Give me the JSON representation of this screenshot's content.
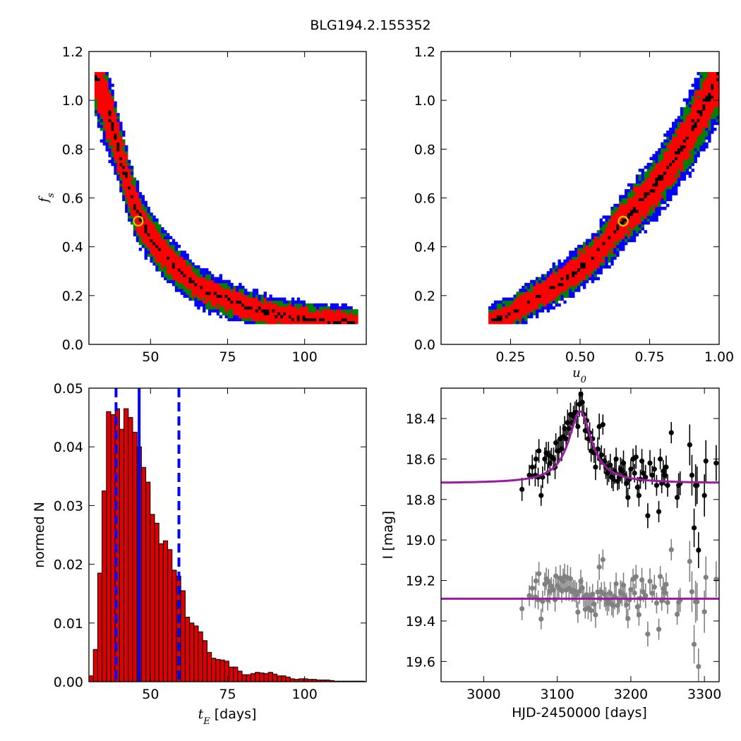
{
  "figure": {
    "title": "BLG194.2.155352"
  },
  "colors": {
    "c3": "#0000ff",
    "c2": "#008000",
    "c1": "#ff0000",
    "c0": "#000000",
    "hist_fill": "#dd0000",
    "model": "#9a1aa0",
    "vline": "#0000ff",
    "data_top": "#000000",
    "data_bottom": "#808080",
    "marker_edge": "#d4c400"
  },
  "chart_data": [
    {
      "type": "heatmap",
      "panel": "fs-vs-tE",
      "xlabel": "",
      "ylabel": "f_s",
      "xlim": [
        30,
        120
      ],
      "ylim": [
        0,
        1.2
      ],
      "xticks": [
        "50",
        "75",
        "100"
      ],
      "yticks": [
        "0.0",
        "0.2",
        "0.4",
        "0.6",
        "0.8",
        "1.0",
        "1.2"
      ],
      "ridge_x": [
        32,
        35,
        38,
        40,
        43,
        46,
        50,
        55,
        60,
        65,
        70,
        78,
        85,
        95,
        105,
        117
      ],
      "ridge_y": [
        1.12,
        1.0,
        0.88,
        0.78,
        0.64,
        0.53,
        0.44,
        0.36,
        0.3,
        0.24,
        0.21,
        0.17,
        0.14,
        0.115,
        0.1,
        0.09
      ],
      "best_fit": {
        "x": 46,
        "y": 0.505
      }
    },
    {
      "type": "heatmap",
      "panel": "fs-vs-u0",
      "xlabel": "u_0",
      "ylabel": "",
      "xlim": [
        0,
        1.0
      ],
      "ylim": [
        0,
        1.2
      ],
      "xticks": [
        "0.25",
        "0.50",
        "0.75",
        "1.00"
      ],
      "yticks": [
        "0.0",
        "0.2",
        "0.4",
        "0.6",
        "0.8",
        "1.0",
        "1.2"
      ],
      "ridge_x": [
        0.17,
        0.25,
        0.35,
        0.45,
        0.55,
        0.65,
        0.75,
        0.85,
        0.92,
        1.0
      ],
      "ridge_y": [
        0.09,
        0.13,
        0.2,
        0.27,
        0.36,
        0.5,
        0.62,
        0.78,
        0.92,
        1.1
      ],
      "best_fit": {
        "x": 0.655,
        "y": 0.505
      }
    },
    {
      "type": "bar",
      "panel": "tE-histogram",
      "xlabel": "t_E [days]",
      "ylabel": "normed N",
      "xlim": [
        30,
        120
      ],
      "ylim": [
        0,
        0.05
      ],
      "xticks": [
        "50",
        "75",
        "100"
      ],
      "yticks": [
        "0.00",
        "0.01",
        "0.02",
        "0.03",
        "0.04",
        "0.05"
      ],
      "bin_start": 30,
      "bin_width": 1.42,
      "values": [
        0.001,
        0.0055,
        0.0185,
        0.0325,
        0.046,
        0.0455,
        0.0465,
        0.043,
        0.0465,
        0.045,
        0.0425,
        0.04,
        0.0365,
        0.034,
        0.0285,
        0.027,
        0.0235,
        0.024,
        0.0225,
        0.019,
        0.018,
        0.0155,
        0.011,
        0.01,
        0.0095,
        0.0085,
        0.007,
        0.005,
        0.004,
        0.0038,
        0.0037,
        0.0035,
        0.0025,
        0.0025,
        0.0018,
        0.0012,
        0.0012,
        0.0014,
        0.0016,
        0.0015,
        0.0014,
        0.0016,
        0.0013,
        0.001,
        0.001,
        0.0008,
        0.0005,
        0.0004,
        0.0005,
        0.0005,
        0.0004,
        0.0004,
        0.0003,
        0.0003,
        0.0003,
        0.0002,
        0.0001,
        0.0001,
        0.0001,
        0.0001,
        0.0001,
        0.0001,
        0.0001
      ],
      "vlines": {
        "median": 46.3,
        "lower": 38.8,
        "upper": 59.2
      }
    },
    {
      "type": "scatter",
      "panel": "light-curve",
      "xlabel": "HJD-2450000 [days]",
      "ylabel": "I [mag]",
      "xlim": [
        2942,
        3320
      ],
      "ylim": [
        19.7,
        18.25
      ],
      "y_inverted": true,
      "xticks": [
        "3000",
        "3100",
        "3200",
        "3300"
      ],
      "yticks": [
        "18.4",
        "18.6",
        "18.8",
        "19.0",
        "19.2",
        "19.4",
        "19.6"
      ],
      "model_top": {
        "t0": 3131,
        "base": 18.72,
        "peak": 18.365,
        "width": 19
      },
      "model_bottom": {
        "level": 19.29
      },
      "points_top_x": [
        3052,
        3062,
        3066,
        3070,
        3071,
        3074,
        3075,
        3078,
        3080,
        3083,
        3085,
        3087,
        3088,
        3090,
        3092,
        3095,
        3097,
        3098,
        3100,
        3102,
        3104,
        3106,
        3108,
        3110,
        3112,
        3114,
        3116,
        3118,
        3120,
        3122,
        3124,
        3126,
        3128,
        3130,
        3132,
        3134,
        3136,
        3138,
        3140,
        3142,
        3144,
        3146,
        3148,
        3150,
        3152,
        3155,
        3157,
        3158,
        3160,
        3162,
        3164,
        3166,
        3168,
        3170,
        3172,
        3174,
        3176,
        3178,
        3180,
        3182,
        3184,
        3186,
        3188,
        3190,
        3192,
        3194,
        3196,
        3198,
        3200,
        3203,
        3205,
        3207,
        3209,
        3211,
        3213,
        3215,
        3217,
        3220,
        3223,
        3226,
        3229,
        3232,
        3235,
        3238,
        3240,
        3242,
        3244,
        3246,
        3248,
        3250,
        3255,
        3263,
        3265,
        3267,
        3280,
        3283,
        3286,
        3288,
        3290,
        3292,
        3300,
        3302,
        3316
      ],
      "points_top_y": [
        18.75,
        18.68,
        18.64,
        18.68,
        18.6,
        18.69,
        18.56,
        18.78,
        18.69,
        18.6,
        18.57,
        18.67,
        18.58,
        18.62,
        18.59,
        18.6,
        18.64,
        18.52,
        18.56,
        18.56,
        18.5,
        18.55,
        18.49,
        18.45,
        18.5,
        18.42,
        18.45,
        18.38,
        18.42,
        18.39,
        18.37,
        18.37,
        18.44,
        18.33,
        18.28,
        18.32,
        18.38,
        18.46,
        18.41,
        18.5,
        18.47,
        18.56,
        18.5,
        18.57,
        18.64,
        18.55,
        18.44,
        18.6,
        18.58,
        18.43,
        18.61,
        18.64,
        18.67,
        18.66,
        18.63,
        18.69,
        18.7,
        18.66,
        18.6,
        18.71,
        18.69,
        18.65,
        18.66,
        18.62,
        18.68,
        18.72,
        18.79,
        18.7,
        18.65,
        18.6,
        18.67,
        18.59,
        18.74,
        18.78,
        18.7,
        18.61,
        18.67,
        18.69,
        18.88,
        18.62,
        18.68,
        18.65,
        18.73,
        18.86,
        18.6,
        18.72,
        18.66,
        18.68,
        18.64,
        18.73,
        18.47,
        18.79,
        18.73,
        18.72,
        18.53,
        18.68,
        18.94,
        18.73,
        18.73,
        19.05,
        18.78,
        18.61,
        18.62
      ]
    }
  ]
}
